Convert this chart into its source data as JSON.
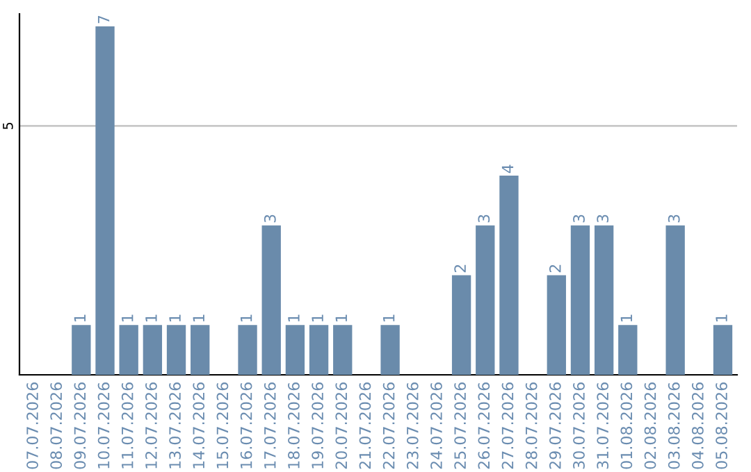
{
  "chart_data": {
    "type": "bar",
    "categories": [
      "07.07.2026",
      "08.07.2026",
      "09.07.2026",
      "10.07.2026",
      "11.07.2026",
      "12.07.2026",
      "13.07.2026",
      "14.07.2026",
      "15.07.2026",
      "16.07.2026",
      "17.07.2026",
      "18.07.2026",
      "19.07.2026",
      "20.07.2026",
      "21.07.2026",
      "22.07.2026",
      "23.07.2026",
      "24.07.2026",
      "25.07.2026",
      "26.07.2026",
      "27.07.2026",
      "28.07.2026",
      "29.07.2026",
      "30.07.2026",
      "31.07.2026",
      "01.08.2026",
      "02.08.2026",
      "03.08.2026",
      "04.08.2026",
      "05.08.2026"
    ],
    "values": [
      0,
      0,
      1,
      7,
      1,
      1,
      1,
      1,
      0,
      1,
      3,
      1,
      1,
      1,
      0,
      1,
      0,
      0,
      2,
      3,
      4,
      0,
      2,
      3,
      3,
      1,
      0,
      3,
      0,
      1
    ],
    "value_labels": [
      null,
      null,
      "1",
      "7",
      "1",
      "1",
      "1",
      "1",
      null,
      "1",
      "3",
      "1",
      "1",
      "1",
      null,
      "1",
      null,
      null,
      "2",
      "3",
      "4",
      null,
      "2",
      "3",
      "3",
      "1",
      null,
      "3",
      null,
      "1"
    ],
    "color": "#6a8bab",
    "ylim": [
      0,
      7.25
    ],
    "yticks": [
      5
    ],
    "grid": "y"
  }
}
